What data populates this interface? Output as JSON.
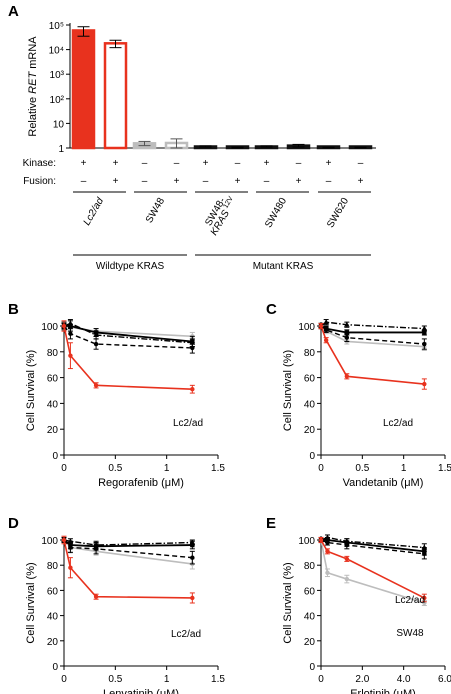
{
  "colors": {
    "red": "#e8321e",
    "black": "#000000",
    "gray": "#bdbdbd"
  },
  "panel_letters": [
    "A",
    "B",
    "C",
    "D",
    "E"
  ],
  "chart_data": [
    {
      "panel": "A",
      "type": "bar",
      "ylabel_parts": [
        "Relative ",
        "RET",
        " mRNA"
      ],
      "yscale": "log",
      "ylim": [
        1,
        100000
      ],
      "yticks": [
        "1",
        "10",
        "10²",
        "10³",
        "10⁴",
        "10⁵"
      ],
      "row_labels": [
        "Kinase:",
        "Fusion:"
      ],
      "bars": [
        {
          "value": 60000,
          "err": 25000,
          "kinase": "+",
          "fusion": "-",
          "style": "red-filled"
        },
        {
          "value": 18000,
          "err": 6000,
          "kinase": "+",
          "fusion": "+",
          "style": "red-outline"
        },
        {
          "value": 1.55,
          "err": 0.3,
          "kinase": "-",
          "fusion": "-",
          "style": "gray-filled"
        },
        {
          "value": 1.6,
          "err": 0.75,
          "kinase": "-",
          "fusion": "+",
          "style": "gray-outline"
        },
        {
          "value": 1.15,
          "err": 0.07,
          "kinase": "+",
          "fusion": "-",
          "style": "black-filled"
        },
        {
          "value": 1.05,
          "err": 0.04,
          "kinase": "-",
          "fusion": "+",
          "style": "black-filled"
        },
        {
          "value": 1.15,
          "err": 0.07,
          "kinase": "+",
          "fusion": "-",
          "style": "black-filled"
        },
        {
          "value": 1.25,
          "err": 0.15,
          "kinase": "-",
          "fusion": "+",
          "style": "black-filled"
        },
        {
          "value": 1.05,
          "err": 0.03,
          "kinase": "+",
          "fusion": "-",
          "style": "black-filled"
        },
        {
          "value": 1.05,
          "err": 0.03,
          "kinase": "-",
          "fusion": "+",
          "style": "black-filled"
        }
      ],
      "cell_lines": [
        {
          "name": "Lc2/ad",
          "italic": true
        },
        {
          "name": "SW48",
          "italic": false
        },
        {
          "name": "SW48-",
          "line2": "KRAS",
          "sup": "12V",
          "italic": false
        },
        {
          "name": "SW480",
          "italic": false
        },
        {
          "name": "SW620",
          "italic": false
        }
      ],
      "groups": [
        "Wildtype KRAS",
        "Mutant KRAS"
      ]
    },
    {
      "panel": "B",
      "type": "line",
      "xlabel": "Regorafenib (μM)",
      "ylabel": "Cell Survival (%)",
      "xlim": [
        0,
        1.5
      ],
      "ylim": [
        0,
        100
      ],
      "xticks": [
        "0",
        "0.5",
        "1",
        "1.5"
      ],
      "yticks": [
        "0",
        "20",
        "40",
        "60",
        "80",
        "100"
      ],
      "x": [
        0,
        0.0625,
        0.3125,
        1.25
      ],
      "series": [
        {
          "style": "gray",
          "values": [
            100,
            99,
            96,
            92
          ],
          "err": [
            2,
            2,
            2,
            3
          ]
        },
        {
          "style": "solid",
          "values": [
            100,
            100,
            95,
            88
          ],
          "err": [
            3,
            4,
            3,
            4
          ]
        },
        {
          "style": "dashed",
          "values": [
            100,
            94,
            86,
            83
          ],
          "err": [
            2,
            4,
            4,
            4
          ]
        },
        {
          "style": "dashdot",
          "values": [
            100,
            102,
            93,
            87
          ],
          "err": [
            2,
            3,
            3,
            3
          ]
        },
        {
          "style": "red",
          "label": "Lc2/ad",
          "values": [
            100,
            77,
            54,
            51
          ],
          "err": [
            4,
            10,
            2,
            3
          ]
        }
      ]
    },
    {
      "panel": "C",
      "type": "line",
      "xlabel": "Vandetanib (μM)",
      "ylabel": "Cell Survival (%)",
      "xlim": [
        0,
        1.5
      ],
      "ylim": [
        0,
        100
      ],
      "xticks": [
        "0",
        "0.5",
        "1",
        "1.5"
      ],
      "yticks": [
        "0",
        "20",
        "40",
        "60",
        "80",
        "100"
      ],
      "x": [
        0,
        0.0625,
        0.3125,
        1.25
      ],
      "series": [
        {
          "style": "gray",
          "values": [
            100,
            96,
            88,
            84
          ],
          "err": [
            2,
            2,
            2,
            3
          ]
        },
        {
          "style": "solid",
          "values": [
            100,
            98,
            95,
            95
          ],
          "err": [
            2,
            2,
            2,
            2
          ]
        },
        {
          "style": "dashed",
          "values": [
            100,
            97,
            91,
            86
          ],
          "err": [
            2,
            2,
            3,
            4
          ]
        },
        {
          "style": "dashdot",
          "values": [
            100,
            103,
            101,
            98
          ],
          "err": [
            2,
            2,
            2,
            2
          ]
        },
        {
          "style": "red",
          "label": "Lc2/ad",
          "values": [
            100,
            89,
            61,
            55
          ],
          "err": [
            2,
            2,
            2,
            4
          ]
        }
      ]
    },
    {
      "panel": "D",
      "type": "line",
      "xlabel": "Lenvatinib (μM)",
      "ylabel": "Cell Survival (%)",
      "xlim": [
        0,
        1.5
      ],
      "ylim": [
        0,
        100
      ],
      "xticks": [
        "0",
        "0.5",
        "1",
        "1.5"
      ],
      "yticks": [
        "0",
        "20",
        "40",
        "60",
        "80",
        "100"
      ],
      "x": [
        0,
        0.0625,
        0.3125,
        1.25
      ],
      "series": [
        {
          "style": "gray",
          "values": [
            100,
            94,
            91,
            81
          ],
          "err": [
            2,
            3,
            3,
            4
          ]
        },
        {
          "style": "solid",
          "values": [
            100,
            96,
            95,
            96
          ],
          "err": [
            2,
            3,
            3,
            3
          ]
        },
        {
          "style": "dashed",
          "values": [
            100,
            94,
            93,
            86
          ],
          "err": [
            2,
            4,
            4,
            5
          ]
        },
        {
          "style": "dashdot",
          "values": [
            100,
            99,
            96,
            98
          ],
          "err": [
            2,
            2,
            3,
            2
          ]
        },
        {
          "style": "red",
          "label": "Lc2/ad",
          "values": [
            100,
            78,
            55,
            54
          ],
          "err": [
            3,
            8,
            2,
            4
          ]
        }
      ]
    },
    {
      "panel": "E",
      "type": "line",
      "xlabel": "Erlotinib (μM)",
      "ylabel": "Cell Survival (%)",
      "xlim": [
        0,
        6
      ],
      "ylim": [
        0,
        100
      ],
      "xticks": [
        "0",
        "2.0",
        "4.0",
        "6.0"
      ],
      "yticks": [
        "0",
        "20",
        "40",
        "60",
        "80",
        "100"
      ],
      "x": [
        0,
        0.3125,
        1.25,
        5
      ],
      "series": [
        {
          "style": "gray",
          "label": "SW48",
          "values": [
            100,
            74,
            69,
            50
          ],
          "err": [
            2,
            3,
            3,
            2
          ]
        },
        {
          "style": "solid",
          "values": [
            100,
            100,
            98,
            91
          ],
          "err": [
            2,
            2,
            3,
            3
          ]
        },
        {
          "style": "dashed",
          "values": [
            100,
            98,
            96,
            89
          ],
          "err": [
            2,
            2,
            3,
            4
          ]
        },
        {
          "style": "dashdot",
          "values": [
            100,
            102,
            99,
            94
          ],
          "err": [
            2,
            2,
            2,
            3
          ]
        },
        {
          "style": "red",
          "label": "Lc2/ad",
          "values": [
            100,
            91,
            85,
            54
          ],
          "err": [
            2,
            2,
            2,
            3
          ]
        }
      ]
    }
  ]
}
